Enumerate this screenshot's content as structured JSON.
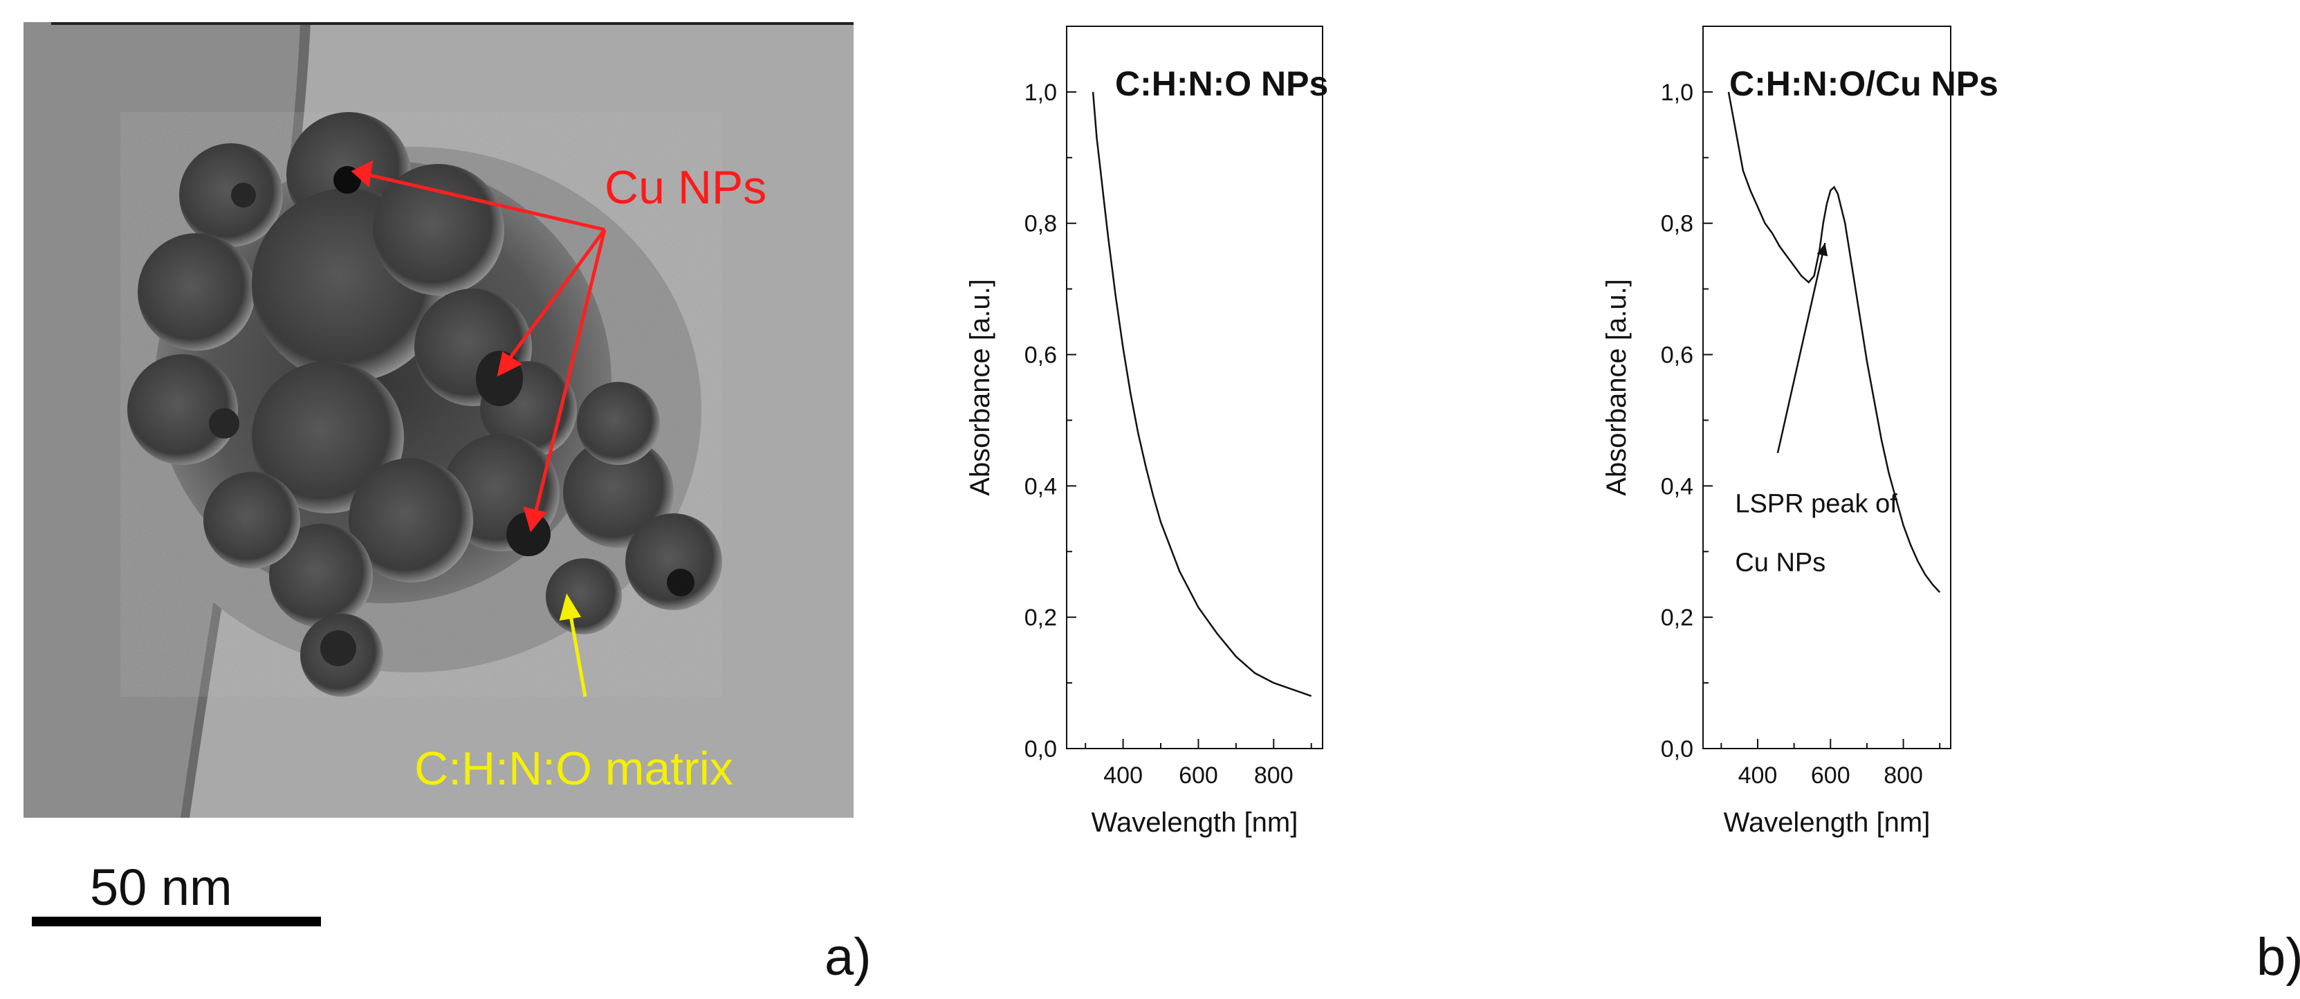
{
  "figure": {
    "panel_a_label": "a)",
    "panel_b_label": "b)"
  },
  "tem": {
    "label_cu": "Cu NPs",
    "label_matrix": "C:H:N:O matrix",
    "scale_bar_text": "50 nm",
    "colors": {
      "cu_label": "#ff1a1a",
      "matrix_label": "#f5f000",
      "arrow_red": "#ff2020",
      "arrow_yellow": "#f5f000"
    },
    "icon": "tem-micrograph"
  },
  "chart_data": [
    {
      "type": "line",
      "title": "C:H:N:O NPs",
      "xlabel": "Wavelength [nm]",
      "ylabel": "Absorbance [a.u.]",
      "xlim": [
        250,
        930
      ],
      "ylim": [
        0,
        1.1
      ],
      "xticks": [
        400,
        600,
        800
      ],
      "xtick_labels": [
        "400",
        "600",
        "800"
      ],
      "yticks": [
        0,
        0.2,
        0.4,
        0.6,
        0.8,
        1.0
      ],
      "ytick_labels": [
        "0,0",
        "0,2",
        "0,4",
        "0,6",
        "0,8",
        "1,0"
      ],
      "grid": false,
      "series": [
        {
          "x": [
            320,
            330,
            340,
            350,
            360,
            380,
            400,
            420,
            440,
            460,
            480,
            500,
            550,
            600,
            650,
            700,
            750,
            800,
            850,
            900
          ],
          "y": [
            1.0,
            0.93,
            0.88,
            0.83,
            0.78,
            0.69,
            0.61,
            0.54,
            0.48,
            0.43,
            0.385,
            0.345,
            0.27,
            0.215,
            0.175,
            0.14,
            0.115,
            0.1,
            0.09,
            0.08
          ]
        }
      ]
    },
    {
      "type": "line",
      "title": "C:H:N:O/Cu NPs",
      "xlabel": "Wavelength [nm]",
      "ylabel": "Absorbance [a.u.]",
      "xlim": [
        250,
        930
      ],
      "ylim": [
        0,
        1.1
      ],
      "xticks": [
        400,
        600,
        800
      ],
      "xtick_labels": [
        "400",
        "600",
        "800"
      ],
      "yticks": [
        0,
        0.2,
        0.4,
        0.6,
        0.8,
        1.0
      ],
      "ytick_labels": [
        "0,0",
        "0,2",
        "0,4",
        "0,6",
        "0,8",
        "1,0"
      ],
      "grid": false,
      "annotation": {
        "line1": "LSPR peak of",
        "line2": "Cu NPs",
        "arrow_tip_x": 585,
        "arrow_tip_y": 0.77,
        "arrow_tail_x": 455,
        "arrow_tail_y": 0.45
      },
      "series": [
        {
          "x": [
            320,
            340,
            360,
            380,
            400,
            420,
            440,
            460,
            480,
            500,
            520,
            540,
            555,
            570,
            580,
            590,
            600,
            610,
            620,
            640,
            660,
            680,
            700,
            720,
            740,
            760,
            780,
            800,
            820,
            840,
            860,
            880,
            900
          ],
          "y": [
            1.0,
            0.94,
            0.88,
            0.85,
            0.825,
            0.8,
            0.785,
            0.765,
            0.75,
            0.735,
            0.72,
            0.71,
            0.72,
            0.76,
            0.8,
            0.83,
            0.85,
            0.855,
            0.845,
            0.8,
            0.73,
            0.66,
            0.59,
            0.53,
            0.47,
            0.42,
            0.38,
            0.34,
            0.31,
            0.285,
            0.265,
            0.25,
            0.238
          ]
        }
      ]
    }
  ]
}
